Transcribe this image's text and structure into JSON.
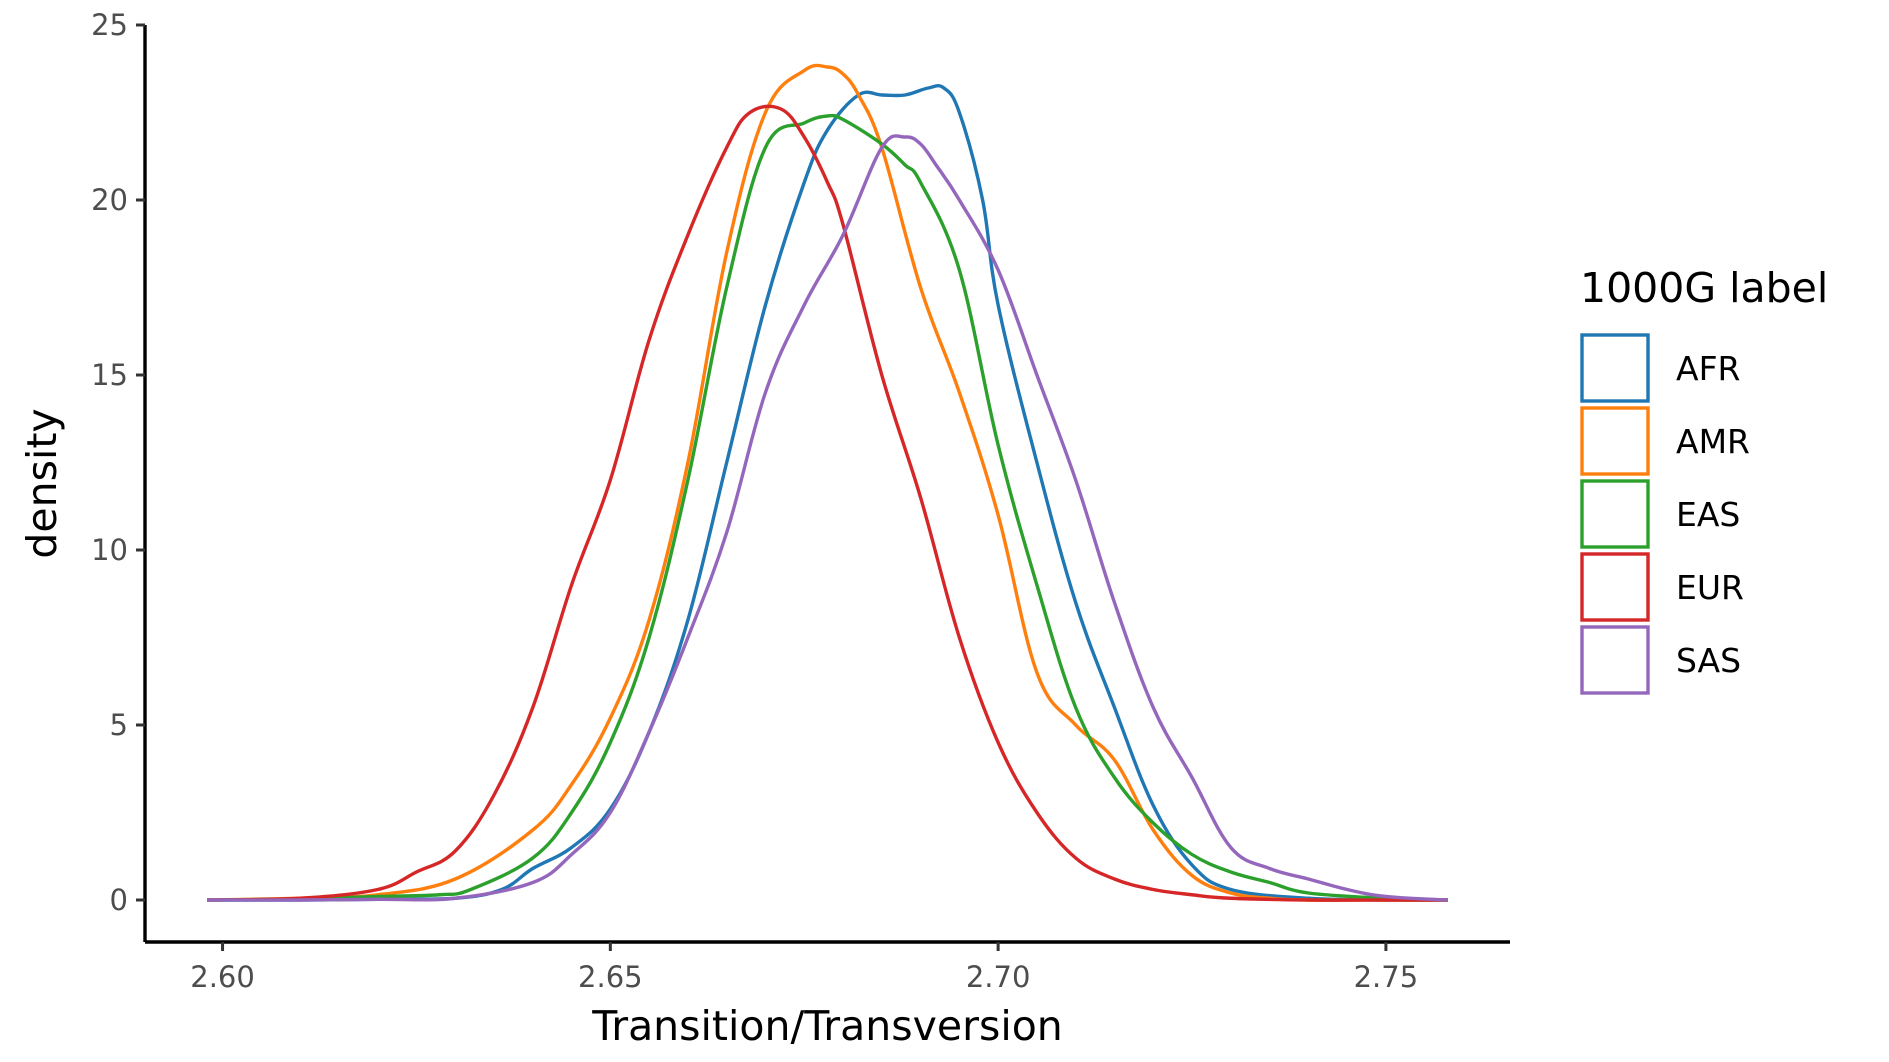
{
  "chart_data": {
    "type": "line",
    "subtype": "density",
    "title": "",
    "xlabel": "Transition/Transversion",
    "ylabel": "density",
    "xlim": [
      2.59,
      2.766
    ],
    "ylim": [
      -1.2,
      25
    ],
    "xticks": [
      2.6,
      2.65,
      2.7,
      2.75
    ],
    "xtick_labels": [
      "2.60",
      "2.65",
      "2.70",
      "2.75"
    ],
    "yticks": [
      0,
      5,
      10,
      15,
      20,
      25
    ],
    "ytick_labels": [
      "0",
      "5",
      "10",
      "15",
      "20",
      "25"
    ],
    "grid": false,
    "legend": {
      "title": "1000G label",
      "position": "right"
    },
    "series": [
      {
        "name": "AFR",
        "color": "#1f77b4",
        "x": [
          2.598,
          2.61,
          2.62,
          2.63,
          2.636,
          2.64,
          2.645,
          2.65,
          2.655,
          2.66,
          2.665,
          2.67,
          2.675,
          2.678,
          2.682,
          2.685,
          2.688,
          2.691,
          2.693,
          2.695,
          2.698,
          2.7,
          2.705,
          2.71,
          2.715,
          2.72,
          2.725,
          2.73,
          2.74,
          2.75,
          2.758
        ],
        "values": [
          0.0,
          0.0,
          0.02,
          0.05,
          0.3,
          0.9,
          1.5,
          2.6,
          4.8,
          8.0,
          12.5,
          17.0,
          20.5,
          22.0,
          23.0,
          23.0,
          23.0,
          23.2,
          23.2,
          22.5,
          20.0,
          17.0,
          12.5,
          8.5,
          5.5,
          2.7,
          1.0,
          0.3,
          0.05,
          0.0,
          0.0
        ]
      },
      {
        "name": "AMR",
        "color": "#ff7f0e",
        "x": [
          2.598,
          2.61,
          2.62,
          2.63,
          2.64,
          2.645,
          2.65,
          2.655,
          2.66,
          2.665,
          2.67,
          2.675,
          2.678,
          2.68,
          2.682,
          2.685,
          2.69,
          2.695,
          2.7,
          2.705,
          2.71,
          2.715,
          2.72,
          2.725,
          2.73,
          2.735,
          2.74,
          2.75,
          2.758
        ],
        "values": [
          0.0,
          0.05,
          0.15,
          0.6,
          2.0,
          3.3,
          5.2,
          8.0,
          12.5,
          18.5,
          22.5,
          23.7,
          23.8,
          23.6,
          23.0,
          21.5,
          17.5,
          14.5,
          11.0,
          6.5,
          5.0,
          4.0,
          2.0,
          0.7,
          0.2,
          0.05,
          0.0,
          0.0,
          0.0
        ]
      },
      {
        "name": "EAS",
        "color": "#2ca02c",
        "x": [
          2.598,
          2.61,
          2.62,
          2.628,
          2.632,
          2.64,
          2.645,
          2.65,
          2.655,
          2.66,
          2.665,
          2.67,
          2.675,
          2.678,
          2.68,
          2.685,
          2.688,
          2.69,
          2.695,
          2.7,
          2.705,
          2.71,
          2.715,
          2.72,
          2.725,
          2.73,
          2.735,
          2.74,
          2.75,
          2.758
        ],
        "values": [
          0.0,
          0.03,
          0.1,
          0.15,
          0.3,
          1.2,
          2.5,
          4.5,
          7.5,
          12.0,
          17.5,
          21.5,
          22.2,
          22.4,
          22.3,
          21.6,
          21.0,
          20.5,
          18.0,
          13.0,
          9.0,
          5.5,
          3.5,
          2.2,
          1.3,
          0.8,
          0.5,
          0.2,
          0.05,
          0.0
        ]
      },
      {
        "name": "EUR",
        "color": "#d62728",
        "x": [
          2.598,
          2.61,
          2.62,
          2.625,
          2.63,
          2.635,
          2.64,
          2.645,
          2.65,
          2.655,
          2.66,
          2.665,
          2.668,
          2.672,
          2.675,
          2.678,
          2.68,
          2.685,
          2.69,
          2.695,
          2.7,
          2.705,
          2.71,
          2.715,
          2.72,
          2.725,
          2.73,
          2.74,
          2.75,
          2.758
        ],
        "values": [
          0.0,
          0.05,
          0.3,
          0.8,
          1.4,
          3.0,
          5.5,
          9.0,
          12.0,
          16.0,
          19.0,
          21.5,
          22.5,
          22.6,
          21.8,
          20.5,
          19.3,
          15.0,
          11.5,
          7.5,
          4.5,
          2.5,
          1.2,
          0.6,
          0.3,
          0.15,
          0.05,
          0.0,
          0.0,
          0.0
        ]
      },
      {
        "name": "SAS",
        "color": "#9467bd",
        "x": [
          2.598,
          2.61,
          2.62,
          2.63,
          2.64,
          2.645,
          2.65,
          2.655,
          2.66,
          2.665,
          2.67,
          2.675,
          2.68,
          2.685,
          2.688,
          2.69,
          2.692,
          2.695,
          2.7,
          2.705,
          2.71,
          2.715,
          2.72,
          2.725,
          2.73,
          2.735,
          2.74,
          2.745,
          2.75,
          2.758
        ],
        "values": [
          0.0,
          0.0,
          0.02,
          0.05,
          0.5,
          1.3,
          2.5,
          4.8,
          7.5,
          10.5,
          14.5,
          17.0,
          19.0,
          21.5,
          21.8,
          21.6,
          21.0,
          20.0,
          18.0,
          15.0,
          12.0,
          8.5,
          5.5,
          3.5,
          1.5,
          0.9,
          0.6,
          0.3,
          0.1,
          0.0
        ]
      }
    ]
  }
}
